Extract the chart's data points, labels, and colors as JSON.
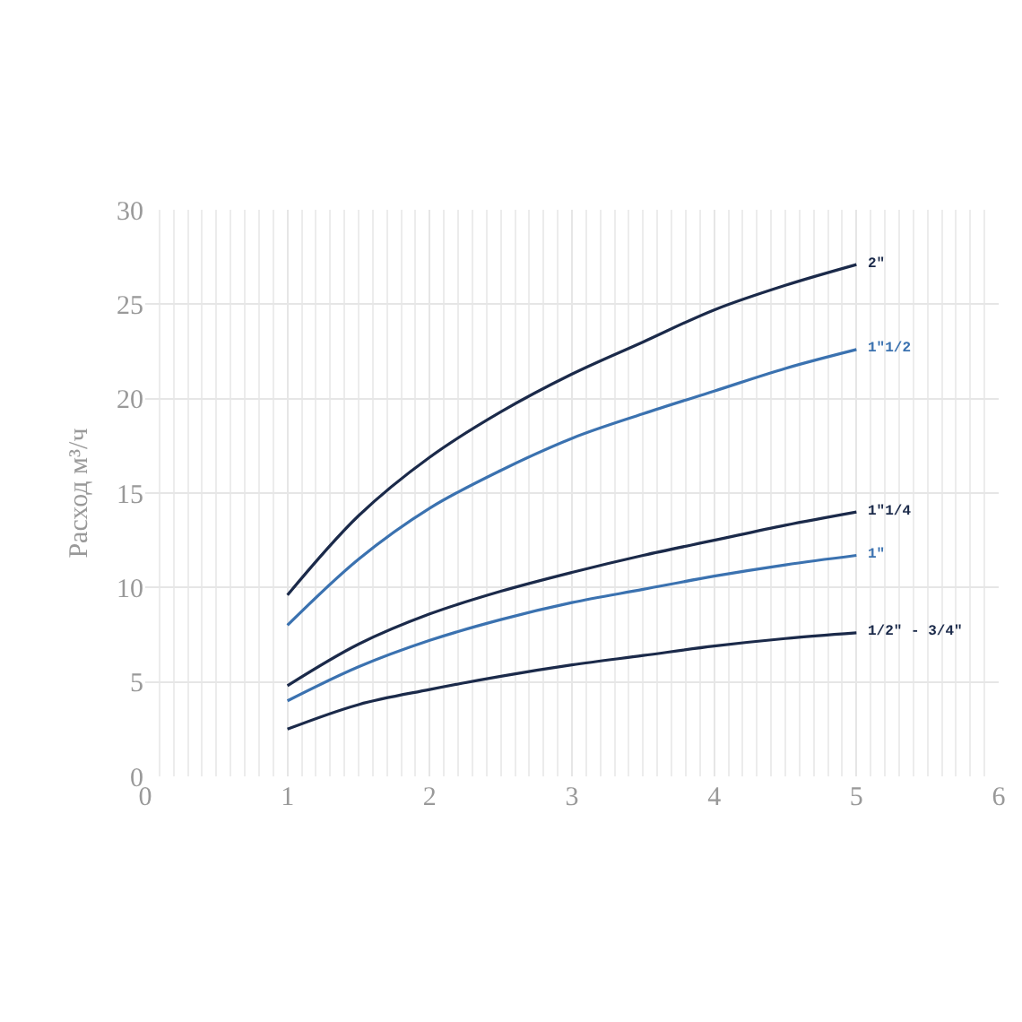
{
  "chart_data": {
    "type": "line",
    "ylabel": "Расход м³/ч",
    "x": [
      1,
      1.5,
      2,
      2.5,
      3,
      3.5,
      4,
      4.5,
      5
    ],
    "series": [
      {
        "name": "2\"",
        "color": "#1b2a4a",
        "values": [
          9.6,
          13.8,
          16.9,
          19.3,
          21.3,
          23.0,
          24.7,
          26.0,
          27.1
        ]
      },
      {
        "name": "1\"1/2",
        "color": "#3b72b0",
        "values": [
          8.0,
          11.5,
          14.2,
          16.2,
          17.9,
          19.2,
          20.4,
          21.6,
          22.6
        ]
      },
      {
        "name": "1\"1/4",
        "color": "#1b2a4a",
        "values": [
          4.8,
          7.0,
          8.6,
          9.8,
          10.8,
          11.7,
          12.5,
          13.3,
          14.0
        ]
      },
      {
        "name": "1\"",
        "color": "#3b72b0",
        "values": [
          4.0,
          5.8,
          7.2,
          8.3,
          9.2,
          9.9,
          10.6,
          11.2,
          11.7
        ]
      },
      {
        "name": "1/2\" - 3/4\"",
        "color": "#1b2a4a",
        "values": [
          2.5,
          3.8,
          4.6,
          5.3,
          5.9,
          6.4,
          6.9,
          7.3,
          7.6
        ]
      }
    ],
    "xlim": [
      0,
      6
    ],
    "xticks": [
      0,
      1,
      2,
      3,
      4,
      5,
      6
    ],
    "ylim": [
      0,
      30
    ],
    "yticks": [
      0,
      5,
      10,
      15,
      20,
      25,
      30
    ],
    "grid": true,
    "legend": false,
    "marker": "none",
    "line_style": "solid"
  }
}
